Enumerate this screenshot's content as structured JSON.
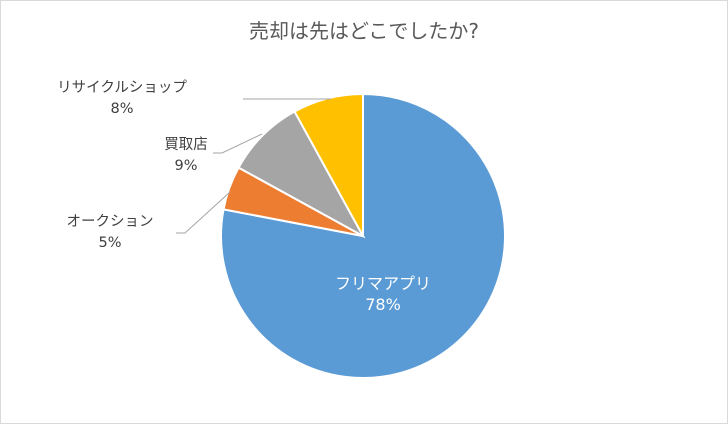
{
  "chart_data": {
    "type": "pie",
    "title": "売却は先はどこでしたか?",
    "start_angle_deg": 0,
    "direction": "clockwise",
    "slices": [
      {
        "label": "フリマアプリ",
        "value": 78,
        "value_label": "78%",
        "color": "#5b9bd5",
        "label_position": "inside"
      },
      {
        "label": "オークション",
        "value": 5,
        "value_label": "5%",
        "color": "#ed7d31",
        "label_position": "outside"
      },
      {
        "label": "買取店",
        "value": 9,
        "value_label": "9%",
        "color": "#a5a5a5",
        "label_position": "outside"
      },
      {
        "label": "リサイクルショップ",
        "value": 8,
        "value_label": "8%",
        "color": "#ffc000",
        "label_position": "outside"
      }
    ]
  }
}
